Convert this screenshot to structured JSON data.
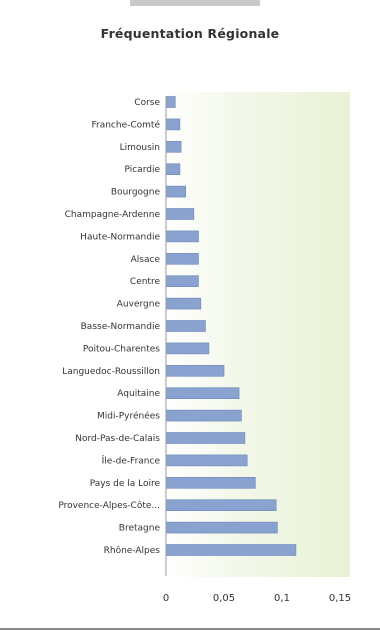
{
  "chart_data": {
    "type": "bar",
    "orientation": "horizontal",
    "title": "Fréquentation Régionale",
    "categories": [
      "Corse",
      "Franche-Comté",
      "Limousin",
      "Picardie",
      "Bourgogne",
      "Champagne-Ardenne",
      "Haute-Normandie",
      "Alsace",
      "Centre",
      "Auvergne",
      "Basse-Normandie",
      "Poitou-Charentes",
      "Languedoc-Roussillon",
      "Aquitaine",
      "Midi-Pyrénées",
      "Nord-Pas-de-Calais",
      "Île-de-France",
      "Pays de la Loire",
      "Provence-Alpes-Côte...",
      "Bretagne",
      "Rhône-Alpes"
    ],
    "values": [
      0.008,
      0.012,
      0.013,
      0.012,
      0.017,
      0.024,
      0.028,
      0.028,
      0.028,
      0.03,
      0.034,
      0.037,
      0.05,
      0.063,
      0.065,
      0.068,
      0.07,
      0.077,
      0.095,
      0.096,
      0.112
    ],
    "xlim": [
      0,
      0.15
    ],
    "ticks": [
      "0",
      "0,05",
      "0,1",
      "0,15"
    ],
    "bar_color": "#8aa2cf",
    "grid": false
  }
}
